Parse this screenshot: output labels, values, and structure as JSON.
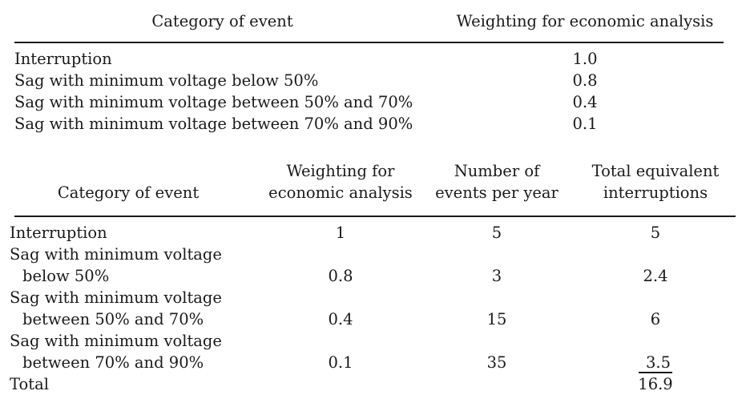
{
  "page": {
    "background": "#ffffff",
    "text_color": "#1a1a1a",
    "rule_color": "#1c1c1c"
  },
  "table1": {
    "headers": [
      "Category of event",
      "Weighting for economic analysis"
    ],
    "rows": [
      {
        "category": "Interruption",
        "weighting": "1.0"
      },
      {
        "category": "Sag with minimum voltage below 50%",
        "weighting": "0.8"
      },
      {
        "category": "Sag with minimum voltage between 50% and 70%",
        "weighting": "0.4"
      },
      {
        "category": "Sag with minimum voltage between 70% and 90%",
        "weighting": "0.1"
      }
    ]
  },
  "table2": {
    "headers": [
      [
        "Category of event"
      ],
      [
        "Weighting for",
        "economic analysis"
      ],
      [
        "Number of",
        "events per year"
      ],
      [
        "Total equivalent",
        "interruptions"
      ]
    ],
    "rows": [
      {
        "category_lines": [
          "Interruption"
        ],
        "weighting": "1",
        "events": "5",
        "total": "5"
      },
      {
        "category_lines": [
          "Sag with minimum voltage",
          "below 50%"
        ],
        "weighting": "0.8",
        "events": "3",
        "total": "2.4"
      },
      {
        "category_lines": [
          "Sag with minimum voltage",
          "between 50% and 70%"
        ],
        "weighting": "0.4",
        "events": "15",
        "total": "6"
      },
      {
        "category_lines": [
          "Sag with minimum voltage",
          "between 70% and 90%"
        ],
        "weighting": "0.1",
        "events": "35",
        "total": "3.5",
        "total_underlined": true
      },
      {
        "category_lines": [
          "Total"
        ],
        "total": "16.9"
      }
    ]
  }
}
